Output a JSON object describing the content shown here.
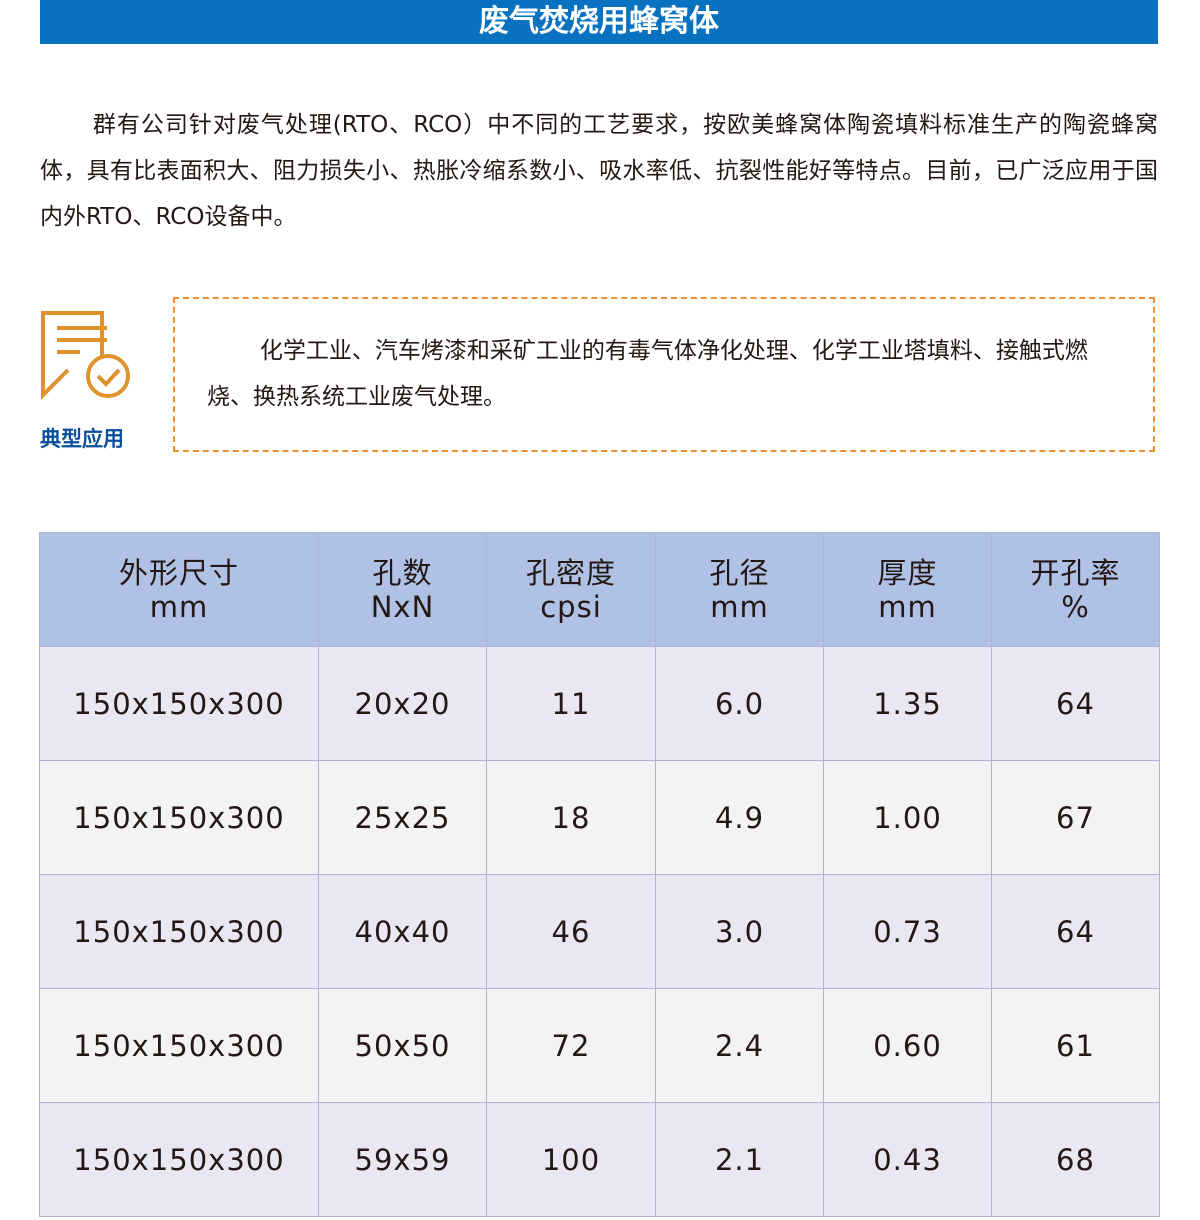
{
  "title": "废气焚烧用蜂窝体",
  "intro": "群有公司针对废气处理(RTO、RCO）中不同的工艺要求，按欧美蜂窝体陶瓷填料标准生产的陶瓷蜂窝体，具有比表面积大、阻力损失小、热胀冷缩系数小、吸水率低、抗裂性能好等特点。目前，已广泛应用于国内外RTO、RCO设备中。",
  "application": {
    "label": "典型应用",
    "icon": "document-check-icon",
    "text": "化学工业、汽车烤漆和采矿工业的有毒气体净化处理、化学工业塔填料、接触式燃烧、换热系统工业废气处理。"
  },
  "colors": {
    "title_bar": "#0872c1",
    "accent_orange": "#e0922f",
    "label_blue": "#0b4e9b",
    "table_header": "#afc1e4"
  },
  "table": {
    "headers": [
      [
        "外形尺寸",
        "mm"
      ],
      [
        "孔数",
        "NxN"
      ],
      [
        "孔密度",
        "cpsi"
      ],
      [
        "孔径",
        "mm"
      ],
      [
        "厚度",
        "mm"
      ],
      [
        "开孔率",
        "%"
      ]
    ],
    "rows": [
      [
        "150x150x300",
        "20x20",
        "11",
        "6.0",
        "1.35",
        "64"
      ],
      [
        "150x150x300",
        "25x25",
        "18",
        "4.9",
        "1.00",
        "67"
      ],
      [
        "150x150x300",
        "40x40",
        "46",
        "3.0",
        "0.73",
        "64"
      ],
      [
        "150x150x300",
        "50x50",
        "72",
        "2.4",
        "0.60",
        "61"
      ],
      [
        "150x150x300",
        "59x59",
        "100",
        "2.1",
        "0.43",
        "68"
      ]
    ]
  }
}
